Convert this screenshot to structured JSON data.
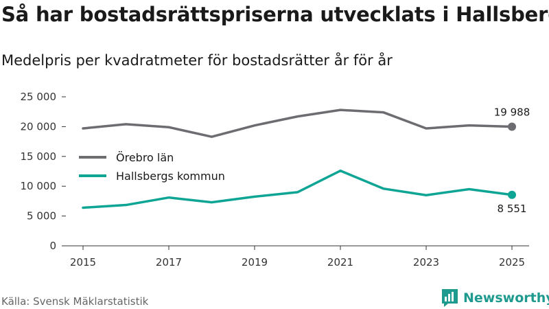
{
  "title": "Så har bostadsrättspriserna utvecklats i Hallsberg",
  "subtitle": "Medelpris per kvadratmeter för bostadsrätter år för år",
  "source": "Källa: Svensk Mäklarstatistik",
  "brand": {
    "name": "Newsworthy",
    "logo_icon": "newsworthy-logo-icon",
    "color": "#1f9a8e"
  },
  "chart_data": {
    "type": "line",
    "title": "Så har bostadsrättspriserna utvecklats i Hallsberg",
    "subtitle": "Medelpris per kvadratmeter för bostadsrätter år för år",
    "xlabel": "",
    "ylabel": "",
    "x": [
      2015,
      2016,
      2017,
      2018,
      2019,
      2020,
      2021,
      2022,
      2023,
      2024,
      2025
    ],
    "xlim": [
      2014.6,
      2025.4
    ],
    "ylim": [
      0,
      25000
    ],
    "x_ticks": [
      2015,
      2017,
      2019,
      2021,
      2023,
      2025
    ],
    "x_tick_labels": [
      "2015",
      "2017",
      "2019",
      "2021",
      "2023",
      "2025"
    ],
    "y_ticks": [
      0,
      5000,
      10000,
      15000,
      20000,
      25000
    ],
    "y_tick_labels": [
      "0",
      "5 000",
      "10 000",
      "15 000",
      "20 000",
      "25 000"
    ],
    "grid": false,
    "legend": "middle-left",
    "series": [
      {
        "name": "Örebro län",
        "color": "#6d6c71",
        "values": [
          19700,
          20400,
          19900,
          18300,
          20200,
          21700,
          22800,
          22400,
          19700,
          20200,
          19988
        ],
        "end_label": "19 988",
        "end_label_position": "above"
      },
      {
        "name": "Hallsbergs kommun",
        "color": "#0fa595",
        "values": [
          6400,
          6850,
          8100,
          7300,
          8250,
          9000,
          12600,
          9600,
          8500,
          9500,
          8551
        ],
        "end_label": "8 551",
        "end_label_position": "below"
      }
    ]
  }
}
